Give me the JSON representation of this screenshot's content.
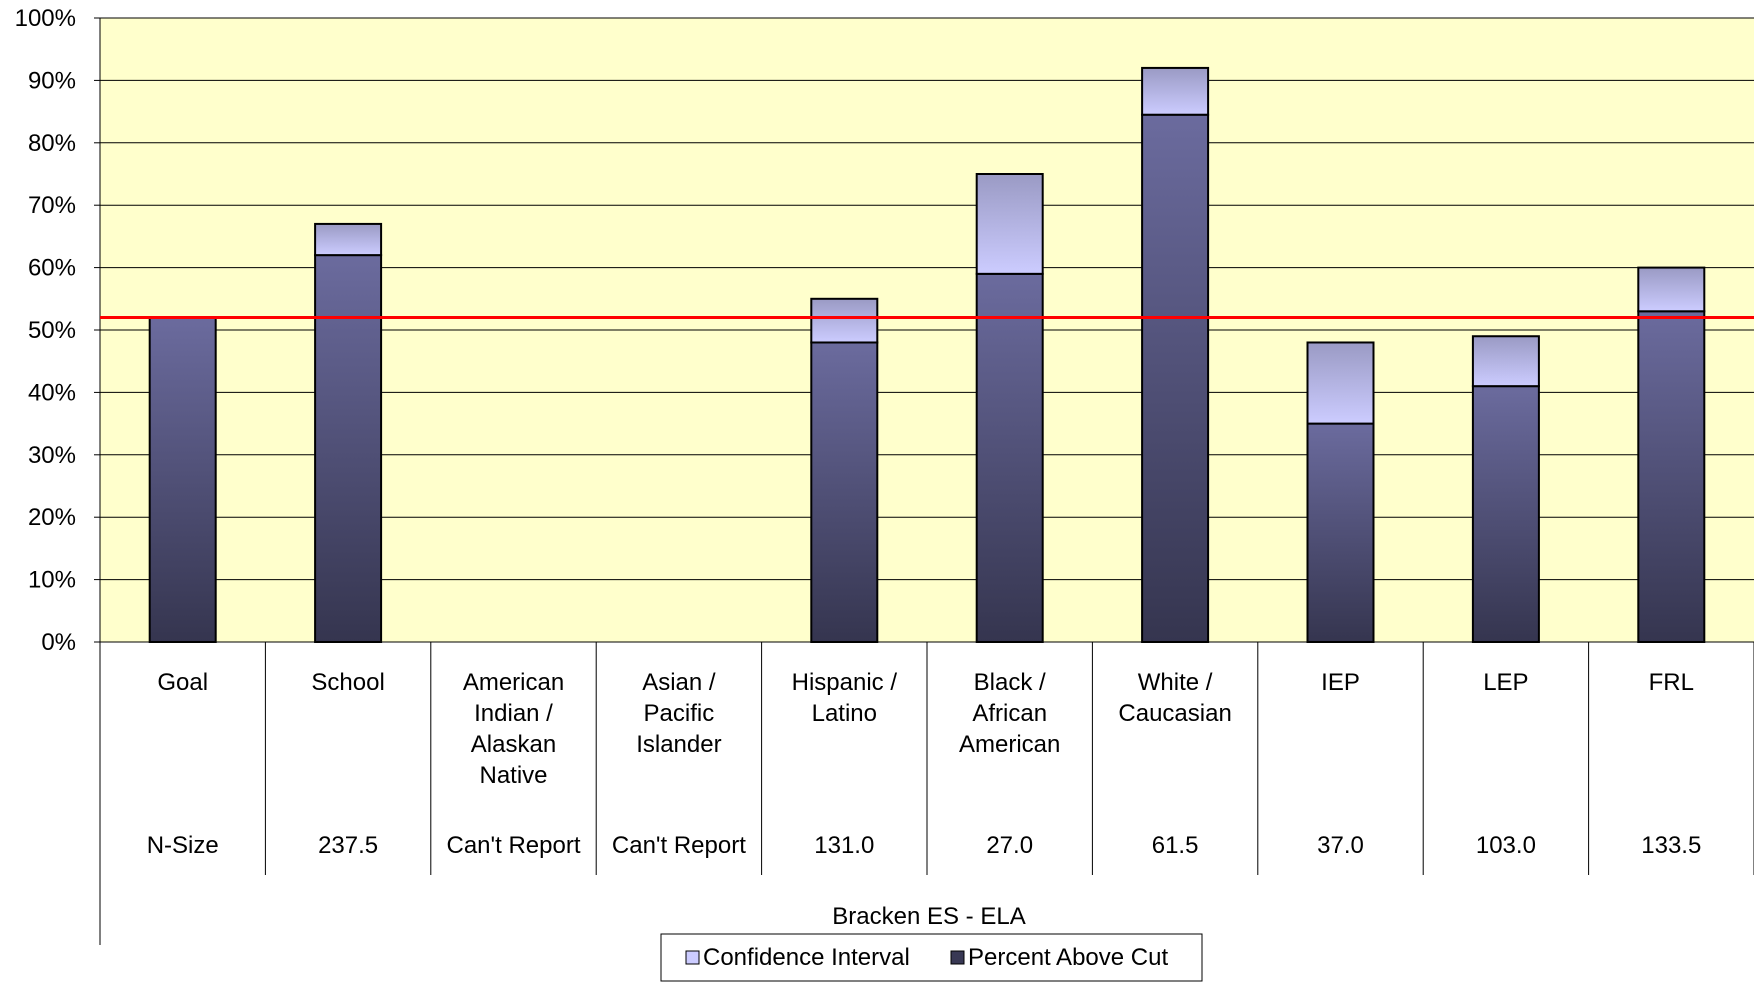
{
  "chart_data": {
    "type": "bar",
    "stacked": true,
    "title": "Bracken ES - ELA",
    "xlabel": "",
    "ylabel": "",
    "ylim": [
      0,
      100
    ],
    "yticks": [
      "0%",
      "10%",
      "20%",
      "30%",
      "40%",
      "50%",
      "60%",
      "70%",
      "80%",
      "90%",
      "100%"
    ],
    "categories": [
      "Goal",
      "School",
      "American Indian / Alaskan Native",
      "Asian / Pacific Islander",
      "Hispanic / Latino",
      "Black / African American",
      "White / Caucasian",
      "IEP",
      "LEP",
      "FRL"
    ],
    "n_size": [
      "N-Size",
      "237.5",
      "Can't Report",
      "Can't Report",
      "131.0",
      "27.0",
      "61.5",
      "37.0",
      "103.0",
      "133.5"
    ],
    "series": [
      {
        "name": "Percent Above Cut",
        "values": [
          52,
          62,
          0,
          0,
          48,
          59,
          84.5,
          35,
          41,
          53
        ]
      },
      {
        "name": "Confidence Interval",
        "values": [
          0,
          5,
          0,
          0,
          7,
          16,
          7.5,
          13,
          8,
          7
        ]
      }
    ],
    "reference_line": {
      "value": 52,
      "color": "#ff0000"
    },
    "grid": true,
    "legend_position": "bottom-center",
    "colors": {
      "plot_background": "#ffffcc",
      "percent_above_cut_top": "#666699",
      "percent_above_cut_bottom": "#383854",
      "confidence_interval_top": "#9999cc",
      "confidence_interval_bottom": "#ccccff",
      "gridline": "#000000"
    }
  }
}
